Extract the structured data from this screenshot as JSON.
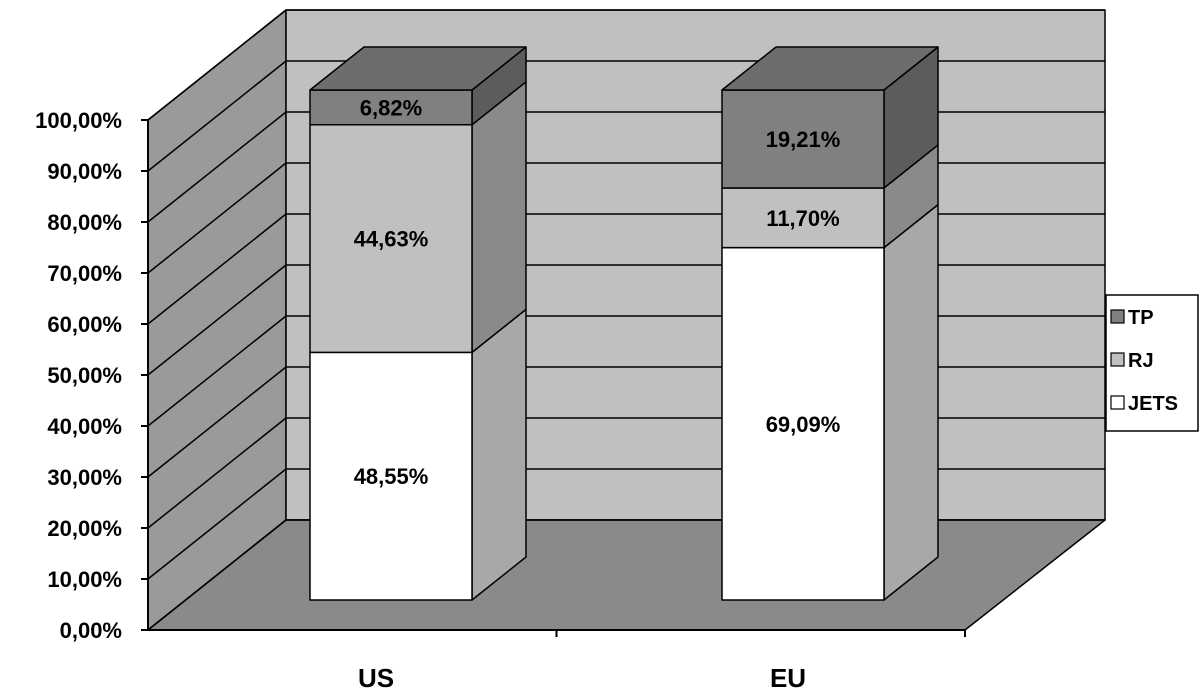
{
  "chart_data": {
    "type": "bar",
    "stacked": true,
    "three_d": true,
    "categories": [
      "US",
      "EU"
    ],
    "series": [
      {
        "name": "JETS",
        "values": [
          48.55,
          69.09
        ],
        "color": "#ffffff",
        "labels": [
          "48,55%",
          "69,09%"
        ]
      },
      {
        "name": "RJ",
        "values": [
          44.63,
          11.7
        ],
        "color": "#c0c0c0",
        "labels": [
          "44,63%",
          "11,70%"
        ]
      },
      {
        "name": "TP",
        "values": [
          6.82,
          19.21
        ],
        "color": "#808080",
        "labels": [
          "6,82%",
          "19,21%"
        ]
      }
    ],
    "y_ticks": [
      "0,00%",
      "10,00%",
      "20,00%",
      "30,00%",
      "40,00%",
      "50,00%",
      "60,00%",
      "70,00%",
      "80,00%",
      "90,00%",
      "100,00%"
    ],
    "ylim": [
      0,
      100
    ],
    "grid": true,
    "legend_position": "right",
    "legend_order": [
      "TP",
      "RJ",
      "JETS"
    ],
    "colors": {
      "back_wall": "#c0c0c0",
      "side_wall": "#9a9a9a",
      "floor": "#8a8a8a",
      "grid": "#000000"
    },
    "title": "",
    "xlabel": "",
    "ylabel": ""
  }
}
